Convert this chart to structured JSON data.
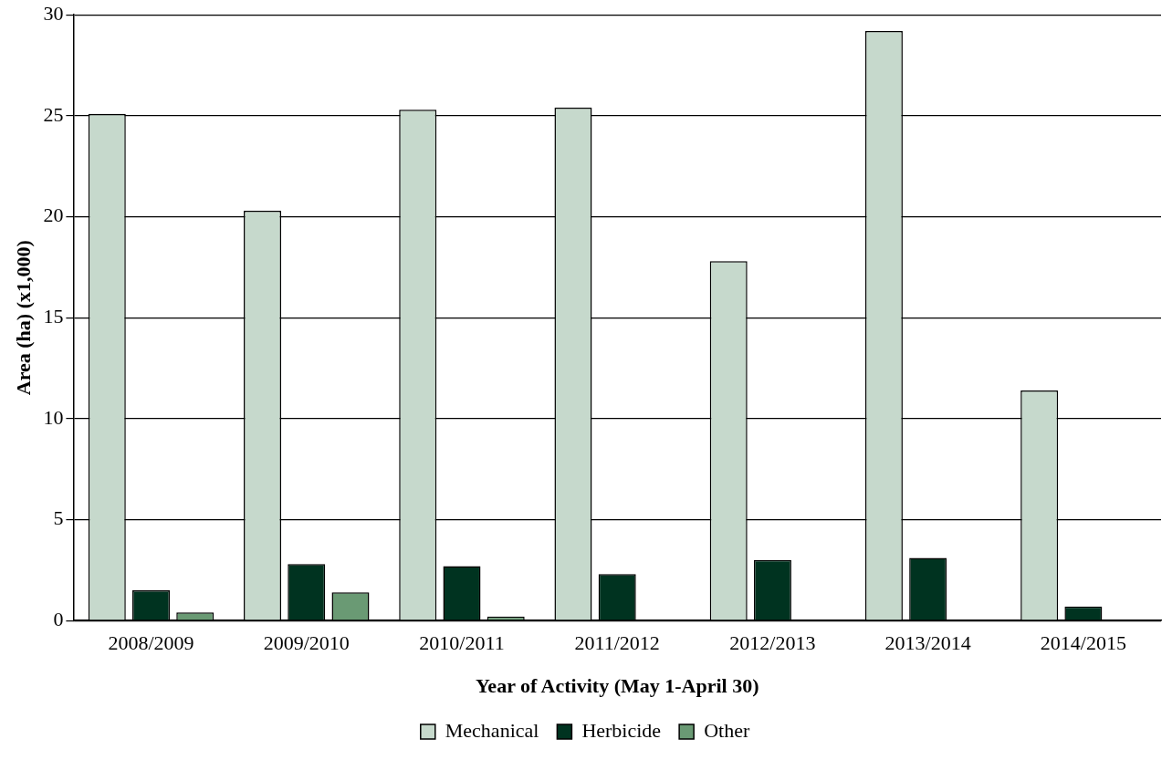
{
  "chart_data": {
    "type": "bar",
    "xlabel": "Year of Activity (May 1-April 30)",
    "ylabel": "Area (ha) (x1,000)",
    "categories": [
      "2008/2009",
      "2009/2010",
      "2010/2011",
      "2011/2012",
      "2012/2013",
      "2013/2014",
      "2014/2015"
    ],
    "series": [
      {
        "name": "Mechanical",
        "color": "#c6d9cc",
        "values": [
          25.1,
          20.3,
          25.3,
          25.4,
          17.8,
          29.2,
          11.4
        ]
      },
      {
        "name": "Herbicide",
        "color": "#003320",
        "values": [
          1.5,
          2.8,
          2.7,
          2.3,
          3.0,
          3.1,
          0.7
        ]
      },
      {
        "name": "Other",
        "color": "#6a9a74",
        "values": [
          0.4,
          1.4,
          0.2,
          0,
          0,
          0,
          0
        ]
      }
    ],
    "ylim": [
      0,
      30
    ],
    "yticks": [
      0,
      5,
      10,
      15,
      20,
      25,
      30
    ],
    "grid": "y",
    "legend": "bottom"
  }
}
